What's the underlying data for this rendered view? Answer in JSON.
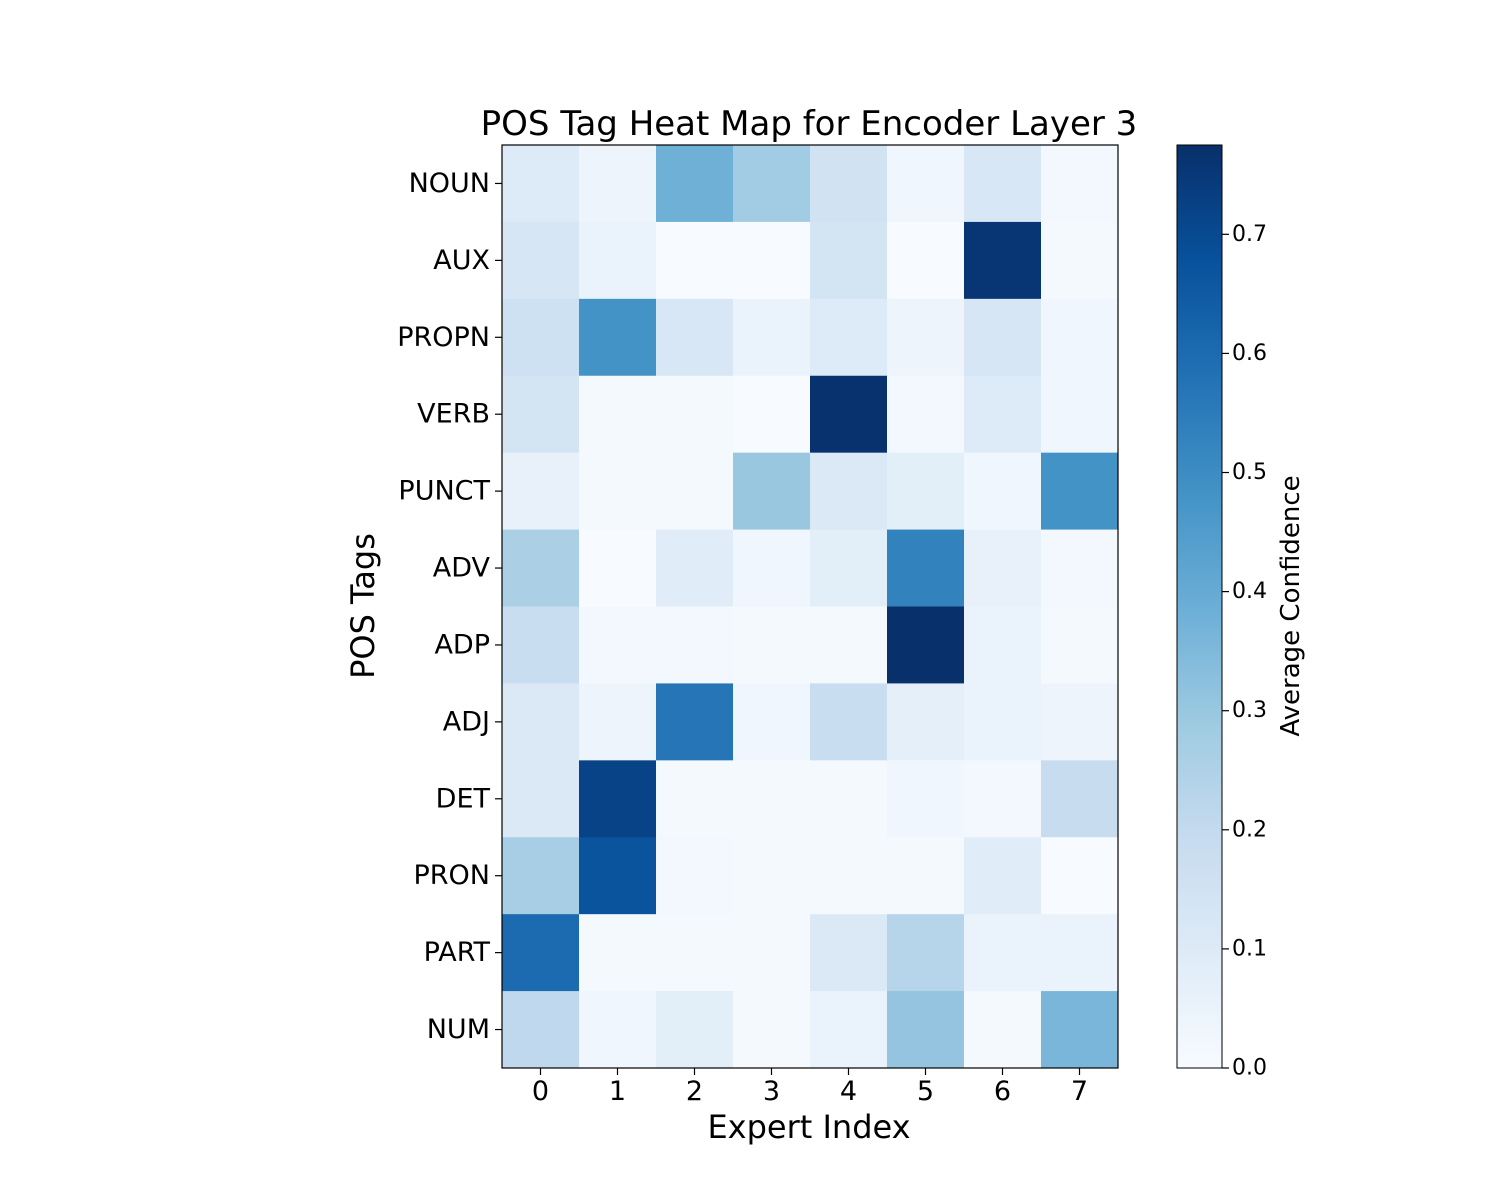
{
  "chart_data": {
    "type": "heatmap",
    "title": "POS Tag Heat Map for Encoder Layer 3",
    "xlabel": "Expert Index",
    "ylabel": "POS Tags",
    "x_categories": [
      "0",
      "1",
      "2",
      "3",
      "4",
      "5",
      "6",
      "7"
    ],
    "y_categories": [
      "NOUN",
      "AUX",
      "PROPN",
      "VERB",
      "PUNCT",
      "ADV",
      "ADP",
      "ADJ",
      "DET",
      "PRON",
      "PART",
      "NUM"
    ],
    "values": [
      [
        0.1,
        0.04,
        0.38,
        0.28,
        0.15,
        0.03,
        0.12,
        0.02
      ],
      [
        0.13,
        0.05,
        0.0,
        0.0,
        0.14,
        0.0,
        0.76,
        0.01
      ],
      [
        0.16,
        0.48,
        0.12,
        0.05,
        0.1,
        0.04,
        0.13,
        0.03
      ],
      [
        0.14,
        0.01,
        0.01,
        0.0,
        0.77,
        0.02,
        0.1,
        0.03
      ],
      [
        0.06,
        0.01,
        0.01,
        0.3,
        0.11,
        0.08,
        0.03,
        0.48
      ],
      [
        0.26,
        0.0,
        0.09,
        0.03,
        0.08,
        0.53,
        0.06,
        0.02
      ],
      [
        0.18,
        0.02,
        0.02,
        0.01,
        0.01,
        0.78,
        0.05,
        0.01
      ],
      [
        0.11,
        0.04,
        0.57,
        0.03,
        0.18,
        0.07,
        0.05,
        0.04
      ],
      [
        0.11,
        0.72,
        0.01,
        0.01,
        0.01,
        0.03,
        0.02,
        0.19
      ],
      [
        0.27,
        0.67,
        0.02,
        0.01,
        0.01,
        0.01,
        0.09,
        0.0
      ],
      [
        0.6,
        0.01,
        0.01,
        0.01,
        0.11,
        0.23,
        0.05,
        0.05
      ],
      [
        0.21,
        0.03,
        0.08,
        0.01,
        0.05,
        0.31,
        0.01,
        0.36
      ]
    ],
    "colorbar": {
      "label": "Average Confidence",
      "range": [
        0.0,
        0.775
      ],
      "ticks": [
        0.0,
        0.1,
        0.2,
        0.3,
        0.4,
        0.5,
        0.6,
        0.7
      ],
      "tick_labels": [
        "0.0",
        "0.1",
        "0.2",
        "0.3",
        "0.4",
        "0.5",
        "0.6",
        "0.7"
      ]
    },
    "colormap": [
      "#f7fbff",
      "#deebf7",
      "#c6dbef",
      "#9ecae1",
      "#6baed6",
      "#4292c6",
      "#2171b5",
      "#08519c",
      "#08306b"
    ]
  }
}
